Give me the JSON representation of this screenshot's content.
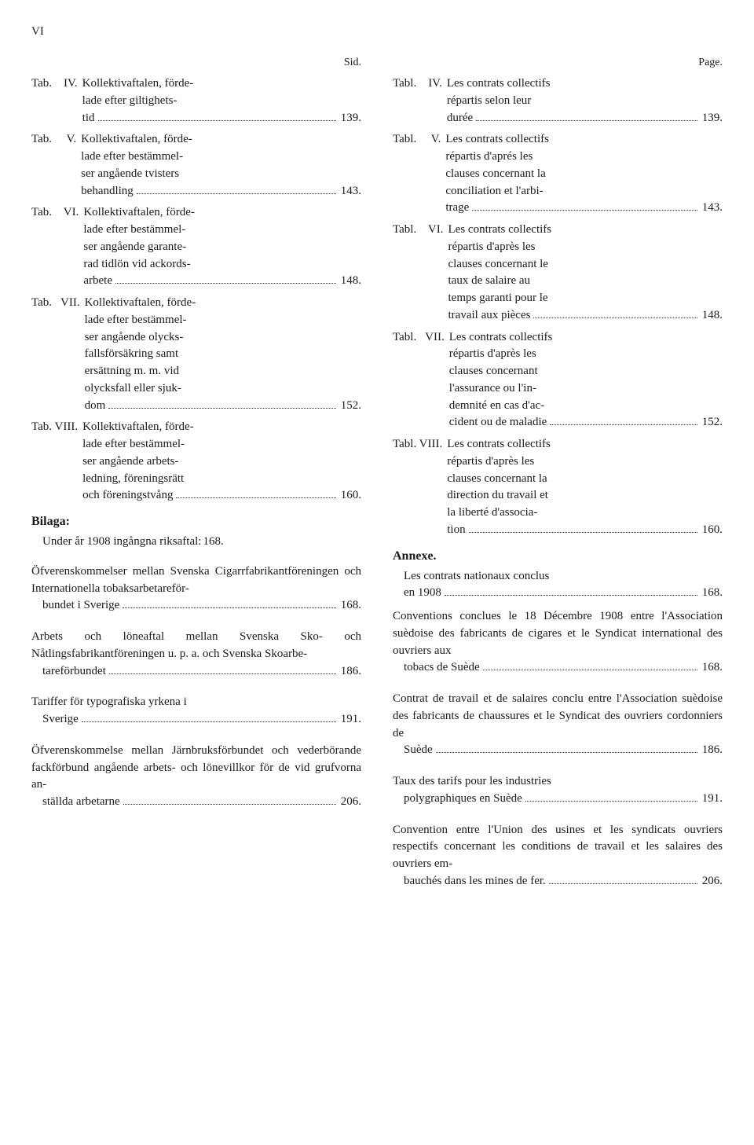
{
  "header": "VI",
  "left": {
    "sidLabel": "Sid.",
    "entries": [
      {
        "label": "Tab.    IV.",
        "lines": [
          "Kollektivaftalen, förde-",
          "lade efter giltighets-"
        ],
        "last": "tid",
        "page": "139."
      },
      {
        "label": "Tab.     V.",
        "lines": [
          "Kollektivaftalen, förde-",
          "lade efter bestämmel-",
          "ser angående tvisters"
        ],
        "last": "behandling",
        "page": "143."
      },
      {
        "label": "Tab.    VI.",
        "lines": [
          "Kollektivaftalen, förde-",
          "lade efter bestämmel-",
          "ser angående garante-",
          "rad tidlön vid ackords-"
        ],
        "last": "arbete",
        "page": "148."
      },
      {
        "label": "Tab.   VII.",
        "lines": [
          "Kollektivaftalen, förde-",
          "lade efter bestämmel-",
          "ser angående olycks-",
          "fallsförsäkring samt",
          "ersättning m. m. vid",
          "olycksfall eller sjuk-"
        ],
        "last": "dom",
        "page": "152."
      },
      {
        "label": "Tab. VIII.",
        "lines": [
          "Kollektivaftalen, förde-",
          "lade efter bestämmel-",
          "ser angående arbets-",
          "ledning, föreningsrätt"
        ],
        "last": "och föreningstvång",
        "page": "160."
      }
    ],
    "bilaga": "Bilaga:",
    "bilagaEntry": {
      "last": "Under år 1908 ingångna riksaftal:",
      "page": "168."
    },
    "paras": [
      {
        "text": "Öfverenskommelser mellan Svenska Cigarrfabrikantföreningen och Internationella tobaksarbetareför-",
        "last": "bundet i Sverige",
        "page": "168."
      },
      {
        "text": "Arbets och löneaftal mellan Svenska Sko- och Nåtlingsfabrikantföreningen u. p. a. och Svenska Skoarbe-",
        "last": "tareförbundet",
        "page": "186."
      },
      {
        "text": "Tariffer för typografiska yrkena i",
        "last": "Sverige",
        "page": "191."
      },
      {
        "text": "Öfverenskommelse mellan Järnbruksförbundet och vederbörande fackförbund angående arbets- och lönevillkor för de vid grufvorna an-",
        "last": "ställda arbetarne",
        "page": "206."
      }
    ]
  },
  "right": {
    "pageLabel": "Page.",
    "entries": [
      {
        "label": "Tabl.    IV.",
        "lines": [
          "Les contrats collectifs",
          "répartis selon leur"
        ],
        "last": "durée",
        "page": "139."
      },
      {
        "label": "Tabl.     V.",
        "lines": [
          "Les contrats collectifs",
          "répartis d'aprés les",
          "clauses concernant la",
          "conciliation et l'arbi-"
        ],
        "last": "trage",
        "page": "143."
      },
      {
        "label": "Tabl.    VI.",
        "lines": [
          "Les contrats collectifs",
          "répartis d'après les",
          "clauses concernant le",
          "taux de salaire au",
          "temps garanti pour le"
        ],
        "last": "travail aux pièces",
        "page": "148."
      },
      {
        "label": "Tabl.   VII.",
        "lines": [
          "Les contrats collectifs",
          "répartis d'après les",
          "clauses concernant",
          "l'assurance ou l'in-",
          "demnité en cas d'ac-"
        ],
        "last": "cident ou de maladie",
        "page": "152."
      },
      {
        "label": "Tabl. VIII.",
        "lines": [
          "Les contrats collectifs",
          "répartis d'après les",
          "clauses concernant la",
          "direction du travail et",
          "la liberté d'associa-"
        ],
        "last": "tion",
        "page": "160."
      }
    ],
    "annexe": "Annexe.",
    "annexeEntry": {
      "lines": [
        "Les contrats nationaux conclus"
      ],
      "last": "en 1908",
      "page": "168."
    },
    "paras": [
      {
        "text": "Conventions conclues le 18 Décembre 1908 entre l'Association suèdoise des fabricants de cigares et le Syndicat international des ouvriers aux",
        "last": "tobacs de Suède",
        "page": "168."
      },
      {
        "text": "Contrat de travail et de salaires conclu entre l'Association suèdoise des fabricants de chaussures et le Syndicat des ouvriers cordonniers de",
        "last": "Suède",
        "page": "186."
      },
      {
        "text": "Taux des tarifs pour les industries",
        "last": "polygraphiques en Suède",
        "page": "191."
      },
      {
        "text": "Convention entre l'Union des usines et les syndicats ouvriers respectifs concernant les conditions de travail et les salaires des ouvriers em-",
        "last": "bauchés dans les mines de fer.",
        "page": "206."
      }
    ]
  }
}
